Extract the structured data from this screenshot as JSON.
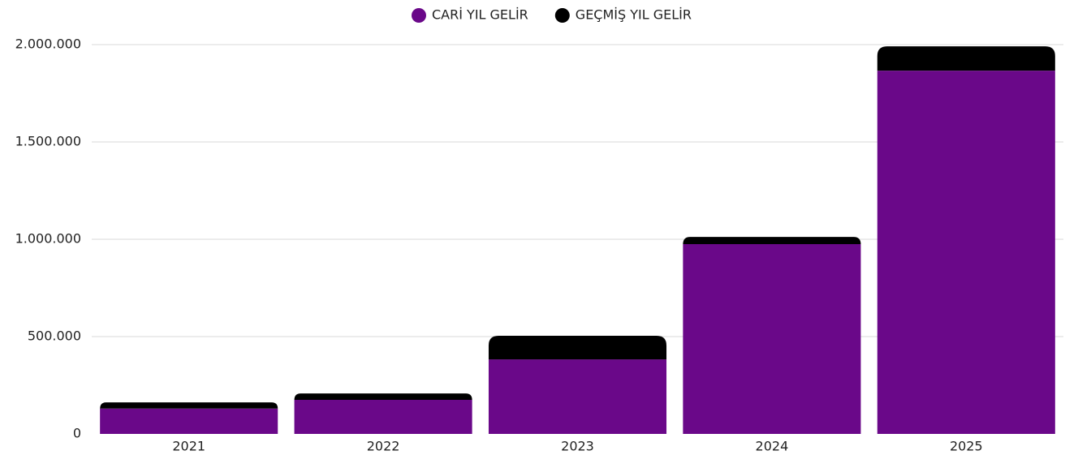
{
  "chart_data": {
    "type": "stacked_bar",
    "categories": [
      "2021",
      "2022",
      "2023",
      "2024",
      "2025"
    ],
    "series": [
      {
        "name": "CARİ YIL GELİR",
        "color": "#6a0889",
        "values": [
          130000,
          175000,
          383000,
          975000,
          1866000
        ]
      },
      {
        "name": "GEÇMİŞ YIL GELİR",
        "color": "#000000",
        "values": [
          32000,
          33000,
          121000,
          37000,
          125000
        ]
      }
    ],
    "ylim": [
      0,
      2000000
    ],
    "yticks": [
      0,
      {
        "value": 500000,
        "label": "500.000"
      },
      {
        "value": 1000000,
        "label": "1.000.000"
      },
      {
        "value": 1500000,
        "label": "1.500.000"
      },
      {
        "value": 2000000,
        "label": "2.000.000"
      }
    ],
    "grid": true,
    "legend": "top"
  }
}
